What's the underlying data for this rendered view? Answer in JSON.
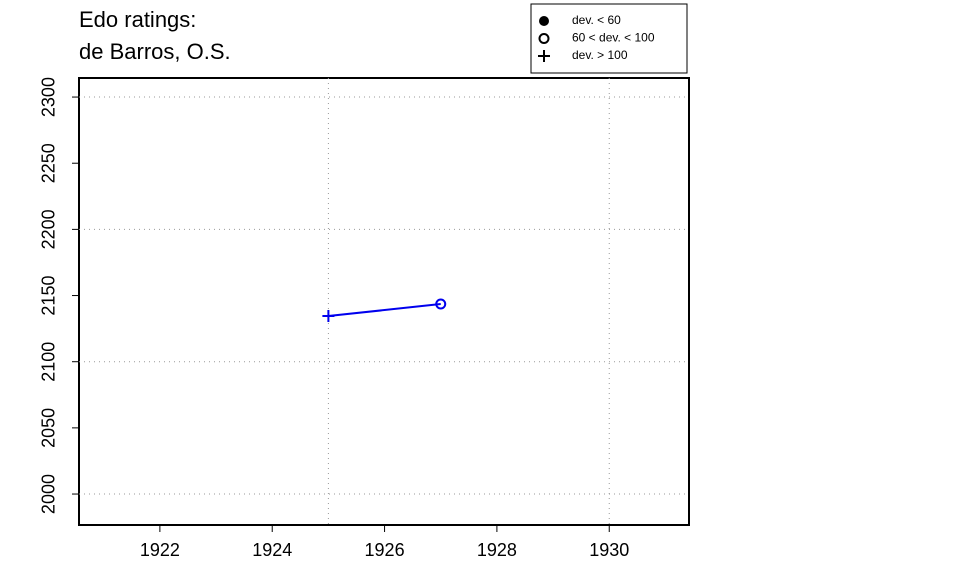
{
  "chart_data": {
    "type": "line",
    "title": [
      "Edo ratings:",
      "de Barros, O.S."
    ],
    "x": [
      1925,
      1927
    ],
    "series": [
      {
        "color": "#0000ee",
        "values": [
          2134.5,
          2143.6
        ],
        "markers": [
          "plus",
          "circle"
        ]
      }
    ],
    "legend": [
      {
        "label": "dev. < 60",
        "marker": "dot"
      },
      {
        "label": "60 < dev. < 100",
        "marker": "circle"
      },
      {
        "label": "dev. > 100",
        "marker": "plus"
      }
    ],
    "legend_position": "top-right",
    "xlim": [
      1920.56,
      1931.42
    ],
    "xticks": [
      1922,
      1924,
      1926,
      1928,
      1930
    ],
    "ylim": [
      1976.6,
      2314.4
    ],
    "yticks": [
      2000,
      2050,
      2100,
      2150,
      2200,
      2250,
      2300
    ],
    "grid_x": [
      1925,
      1930
    ],
    "grid_y": [
      2000,
      2100,
      2200,
      2300
    ]
  }
}
